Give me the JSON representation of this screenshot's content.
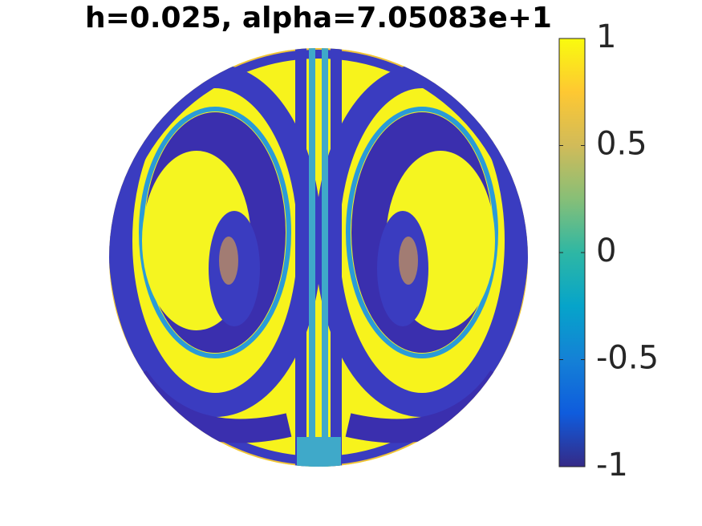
{
  "chart_data": {
    "type": "heatmap",
    "title": "h=0.025, alpha=7.05083e+1",
    "clim": [
      -1,
      1
    ],
    "cticks": [
      -1,
      -0.5,
      0,
      0.5,
      1
    ],
    "colormap": [
      "#352a87",
      "#0f5cdd",
      "#1481d6",
      "#06a4ca",
      "#2eb7a4",
      "#87bf77",
      "#d1bb59",
      "#fec832",
      "#f9fb0e"
    ]
  }
}
